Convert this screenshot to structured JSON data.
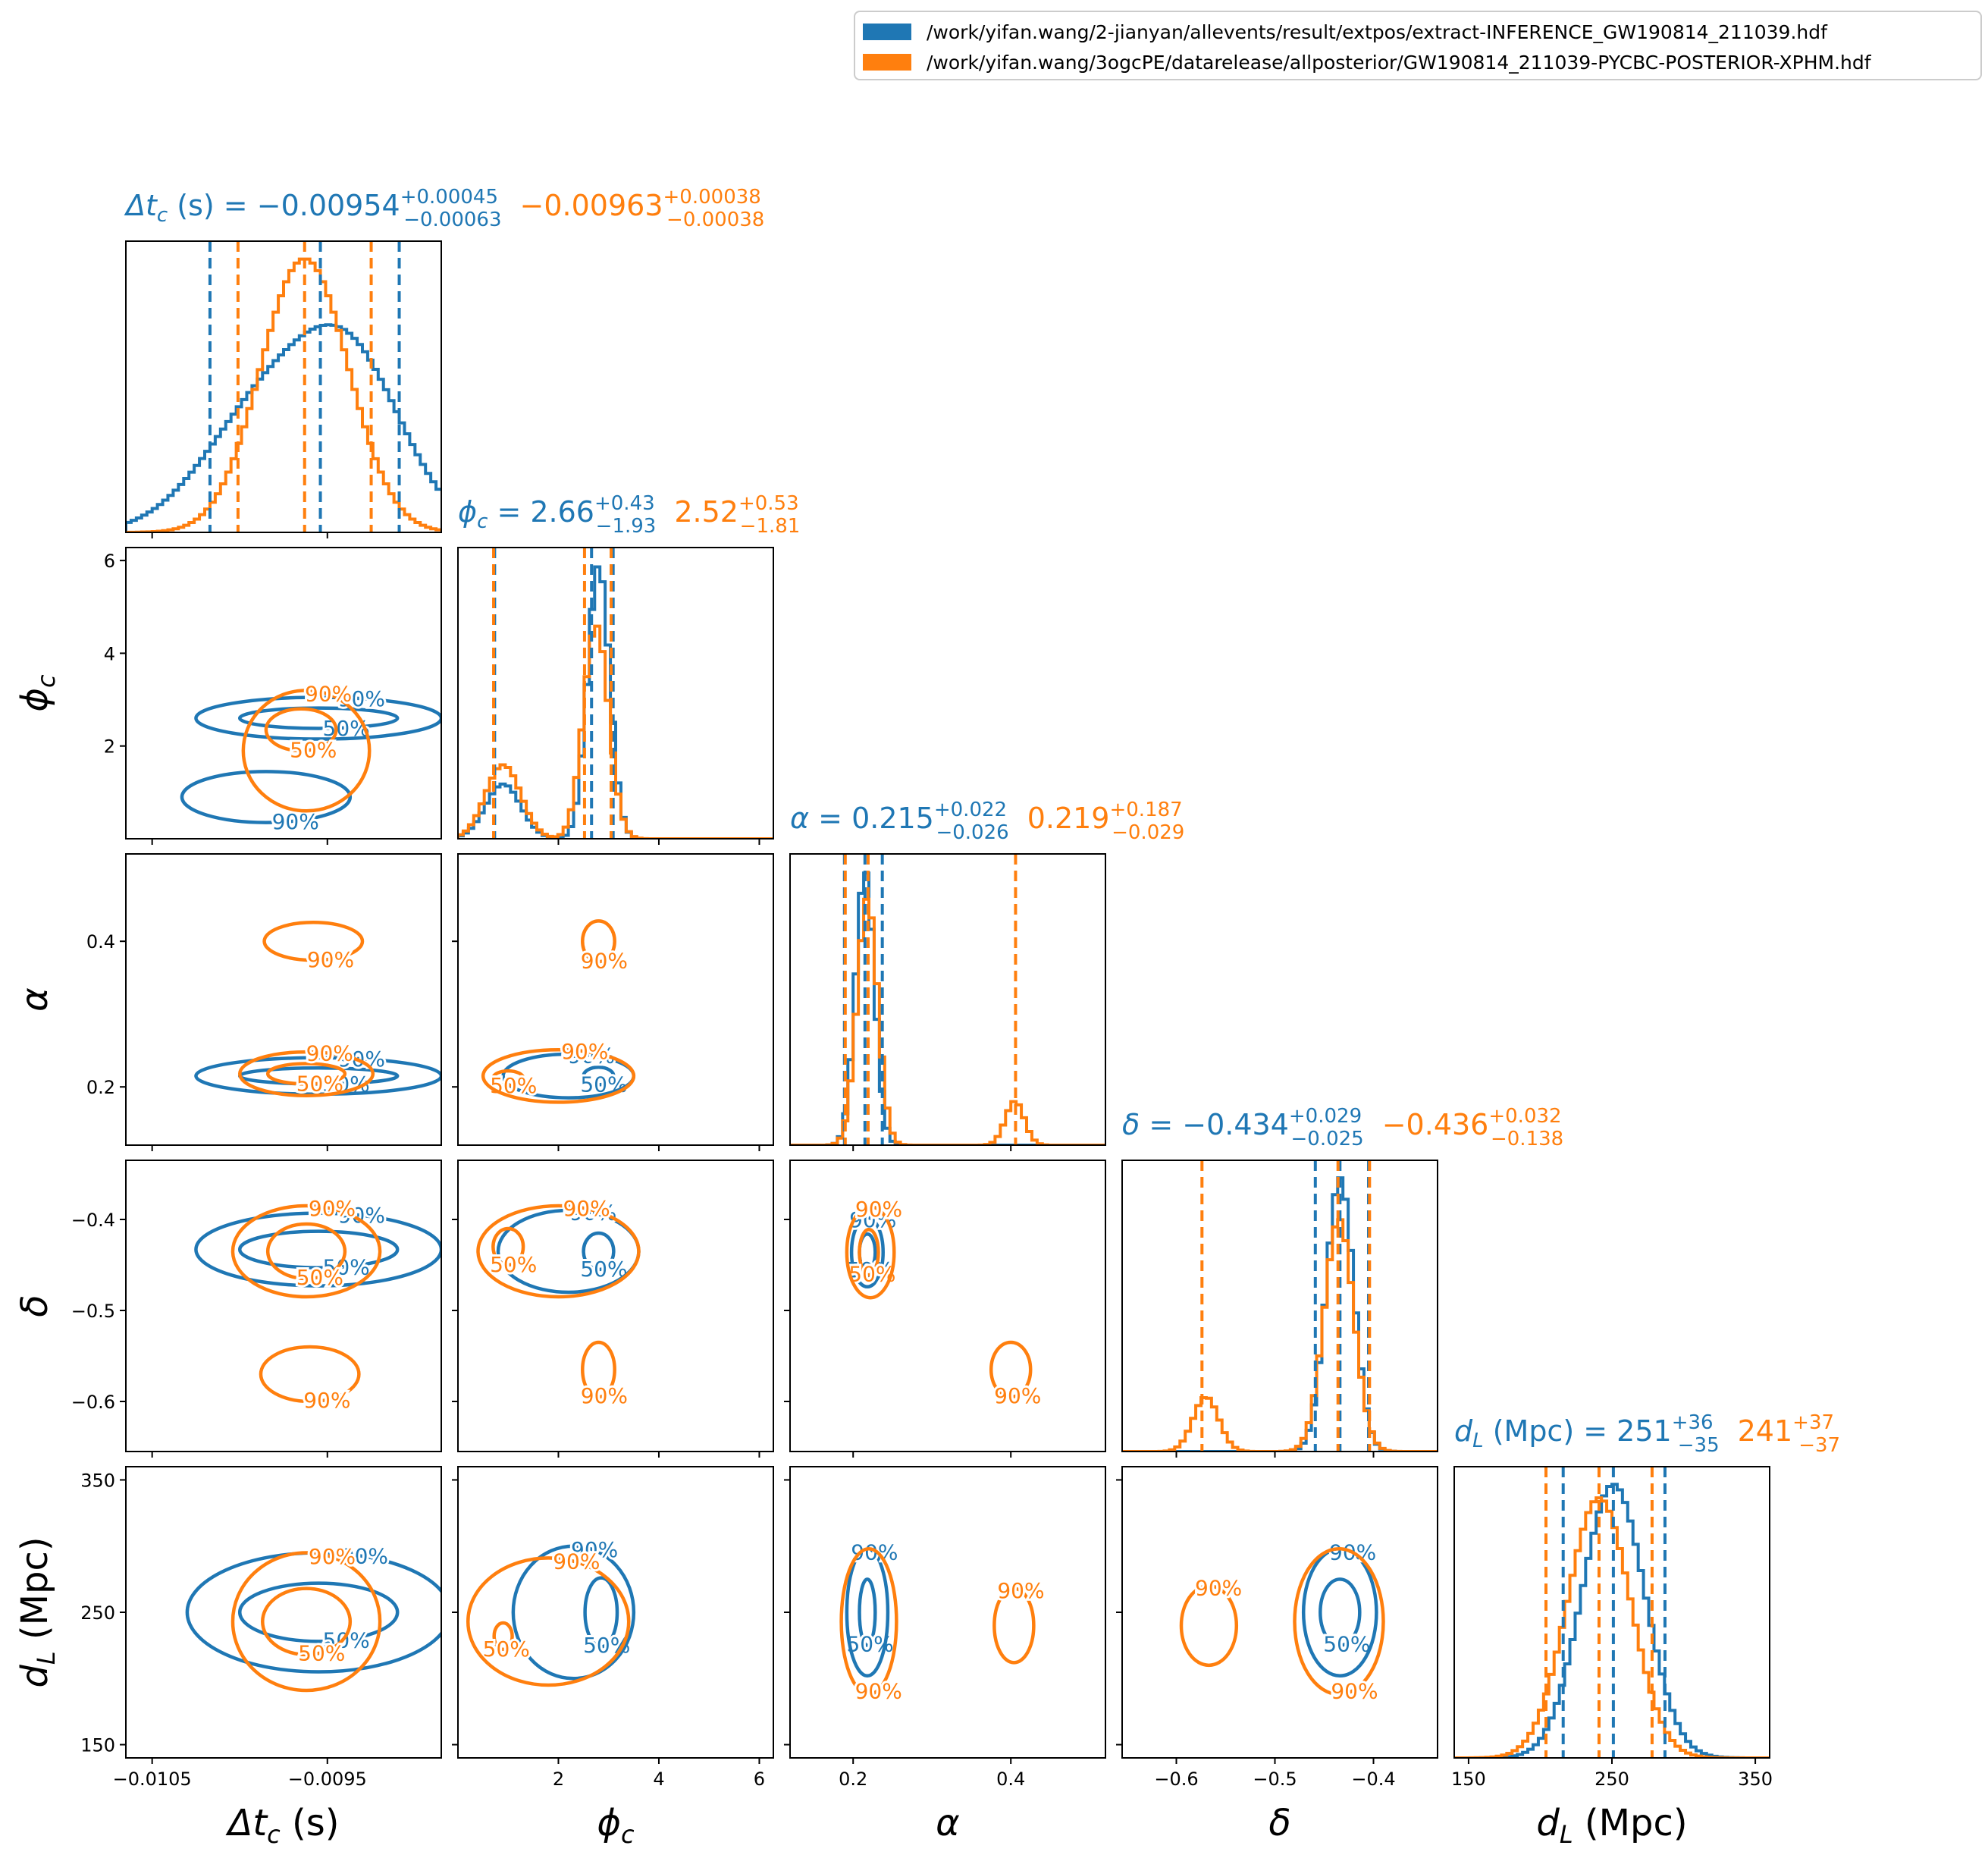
{
  "legend": {
    "blue_label": "/work/yifan.wang/2-jianyan/allevents/result/extpos/extract-INFERENCE_GW190814_211039.hdf",
    "orange_label": "/work/yifan.wang/3ogcPE/datarelease/allposterior/GW190814_211039-PYCBC-POSTERIOR-XPHM.hdf"
  },
  "chart_data": {
    "type": "corner",
    "colors": {
      "blue": "#1f77b4",
      "orange": "#ff7f0e"
    },
    "series": [
      {
        "name": "/work/yifan.wang/2-jianyan/allevents/result/extpos/extract-INFERENCE_GW190814_211039.hdf",
        "color": "#1f77b4"
      },
      {
        "name": "/work/yifan.wang/3ogcPE/datarelease/allposterior/GW190814_211039-PYCBC-POSTERIOR-XPHM.hdf",
        "color": "#ff7f0e"
      }
    ],
    "contour_levels": [
      "50%",
      "90%"
    ],
    "parameters": [
      {
        "key": "dtc",
        "label": "Δt_c (s)",
        "range": [
          -0.01065,
          -0.00885
        ],
        "ticks": [
          -0.0105,
          -0.0095
        ],
        "tick_labels": [
          "−0.0105",
          "−0.0095"
        ],
        "title_blue": {
          "name": "Δt_c (s) = ",
          "median": "−0.00954",
          "plus": "+0.00045",
          "minus": "−0.00063"
        },
        "title_orange": {
          "median": "−0.00963",
          "plus": "+0.00038",
          "minus": "−0.00038"
        },
        "quantiles_blue": [
          -0.01017,
          -0.00954,
          -0.00909
        ],
        "quantiles_orange": [
          -0.01001,
          -0.00963,
          -0.00925
        ],
        "hist_blue": {
          "components": [
            [
              -0.00985,
              0.00035,
              0.45
            ],
            [
              -0.00935,
              0.0003,
              0.55
            ]
          ]
        },
        "hist_orange": {
          "components": [
            [
              -0.00963,
              0.00025,
              1.0
            ]
          ]
        }
      },
      {
        "key": "phic",
        "label": "ϕ_c",
        "range": [
          0.0,
          6.28
        ],
        "ticks": [
          2,
          4,
          6
        ],
        "tick_labels": [
          "2",
          "4",
          "6"
        ],
        "title_blue": {
          "name": "ϕ_c = ",
          "median": "2.66",
          "plus": "+0.43",
          "minus": "−1.93"
        },
        "title_orange": {
          "median": "2.52",
          "plus": "+0.53",
          "minus": "−1.81"
        },
        "quantiles_blue": [
          0.73,
          2.66,
          3.09
        ],
        "quantiles_orange": [
          0.71,
          2.52,
          3.05
        ],
        "hist_blue": {
          "components": [
            [
              0.9,
              0.35,
              0.2
            ],
            [
              2.8,
              0.22,
              1.0
            ]
          ]
        },
        "hist_orange": {
          "components": [
            [
              0.9,
              0.35,
              0.27
            ],
            [
              2.75,
              0.25,
              0.78
            ]
          ]
        }
      },
      {
        "key": "alpha",
        "label": "α",
        "range": [
          0.12,
          0.52
        ],
        "ticks": [
          0.2,
          0.4
        ],
        "tick_labels": [
          "0.2",
          "0.4"
        ],
        "title_blue": {
          "name": "α = ",
          "median": "0.215",
          "plus": "+0.022",
          "minus": "−0.026"
        },
        "title_orange": {
          "median": "0.219",
          "plus": "+0.187",
          "minus": "−0.029"
        },
        "quantiles_blue": [
          0.189,
          0.215,
          0.237
        ],
        "quantiles_orange": [
          0.19,
          0.219,
          0.406
        ],
        "hist_blue": {
          "components": [
            [
              0.215,
              0.012,
              1.0
            ]
          ]
        },
        "hist_orange": {
          "components": [
            [
              0.218,
              0.013,
              0.9
            ],
            [
              0.405,
              0.012,
              0.16
            ]
          ]
        }
      },
      {
        "key": "delta",
        "label": "δ",
        "range": [
          -0.655,
          -0.335
        ],
        "ticks": [
          -0.6,
          -0.5,
          -0.4
        ],
        "tick_labels": [
          "−0.6",
          "−0.5",
          "−0.4"
        ],
        "title_blue": {
          "name": "δ = ",
          "median": "−0.434",
          "plus": "+0.029",
          "minus": "−0.025"
        },
        "title_orange": {
          "median": "−0.436",
          "plus": "+0.032",
          "minus": "−0.138"
        },
        "quantiles_blue": [
          -0.459,
          -0.434,
          -0.405
        ],
        "quantiles_orange": [
          -0.574,
          -0.436,
          -0.404
        ],
        "hist_blue": {
          "components": [
            [
              -0.434,
              0.014,
              1.0
            ]
          ]
        },
        "hist_orange": {
          "components": [
            [
              -0.435,
              0.015,
              0.85
            ],
            [
              -0.57,
              0.013,
              0.2
            ]
          ]
        }
      },
      {
        "key": "dl",
        "label": "d_L (Mpc)",
        "range": [
          140,
          360
        ],
        "ticks": [
          150,
          250,
          350
        ],
        "tick_labels": [
          "150",
          "250",
          "350"
        ],
        "title_blue": {
          "name": "d_L (Mpc) = ",
          "median": "251",
          "plus": "+36",
          "minus": "−35"
        },
        "title_orange": {
          "median": "241",
          "plus": "+37",
          "minus": "−37"
        },
        "quantiles_blue": [
          216,
          251,
          287
        ],
        "quantiles_orange": [
          204,
          241,
          278
        ],
        "hist_blue": {
          "components": [
            [
              251,
              22,
              1.0
            ]
          ]
        },
        "hist_orange": {
          "components": [
            [
              241,
              22,
              0.95
            ]
          ]
        }
      }
    ],
    "y_axis_ticks": {
      "phic": {
        "ticks": [
          2,
          4,
          6
        ],
        "tick_labels": [
          "2",
          "4",
          "6"
        ]
      },
      "alpha": {
        "ticks": [
          0.2,
          0.4
        ],
        "tick_labels": [
          "0.2",
          "0.4"
        ]
      },
      "delta": {
        "ticks": [
          -0.6,
          -0.5,
          -0.4
        ],
        "tick_labels": [
          "−0.6",
          "−0.5",
          "−0.4"
        ]
      },
      "dl": {
        "ticks": [
          150,
          250,
          350
        ],
        "tick_labels": [
          "150",
          "250",
          "350"
        ]
      }
    },
    "contours_2d": {
      "1-0": {
        "blue": [
          {
            "level": "50%",
            "center": [
              -0.00955,
              2.6
            ],
            "radius": [
              0.00045,
              0.22
            ]
          },
          {
            "level": "90%",
            "center": [
              -0.00955,
              2.6
            ],
            "radius": [
              0.0007,
              0.45
            ]
          },
          {
            "level": "90%",
            "center": [
              -0.00985,
              0.9
            ],
            "radius": [
              0.00048,
              0.55
            ]
          }
        ],
        "orange": [
          {
            "level": "50%",
            "center": [
              -0.00965,
              2.35
            ],
            "radius": [
              0.0002,
              0.45
            ]
          },
          {
            "level": "90%",
            "center": [
              -0.00962,
              1.9
            ],
            "radius": [
              0.00036,
              1.3
            ]
          }
        ]
      },
      "2-0": {
        "blue": [
          {
            "level": "50%",
            "center": [
              -0.00955,
              0.215
            ],
            "radius": [
              0.00045,
              0.011
            ]
          },
          {
            "level": "90%",
            "center": [
              -0.00955,
              0.215
            ],
            "radius": [
              0.0007,
              0.025
            ]
          }
        ],
        "orange": [
          {
            "level": "50%",
            "center": [
              -0.00962,
              0.218
            ],
            "radius": [
              0.00022,
              0.014
            ]
          },
          {
            "level": "90%",
            "center": [
              -0.00962,
              0.218
            ],
            "radius": [
              0.00038,
              0.03
            ]
          },
          {
            "level": "90%",
            "center": [
              -0.00958,
              0.4
            ],
            "radius": [
              0.00028,
              0.026
            ]
          }
        ]
      },
      "2-1": {
        "blue": [
          {
            "level": "50%",
            "center": [
              2.8,
              0.215
            ],
            "radius": [
              0.3,
              0.012
            ]
          },
          {
            "level": "90%",
            "center": [
              2.2,
              0.215
            ],
            "radius": [
              1.3,
              0.03
            ]
          }
        ],
        "orange": [
          {
            "level": "50%",
            "center": [
              1.0,
              0.212
            ],
            "radius": [
              0.3,
              0.01
            ]
          },
          {
            "level": "90%",
            "center": [
              2.0,
              0.215
            ],
            "radius": [
              1.5,
              0.036
            ]
          },
          {
            "level": "90%",
            "center": [
              2.8,
              0.4
            ],
            "radius": [
              0.32,
              0.028
            ]
          }
        ]
      },
      "2-2": {},
      "3-0": {
        "blue": [
          {
            "level": "50%",
            "center": [
              -0.00955,
              -0.433
            ],
            "radius": [
              0.00045,
              0.02
            ]
          },
          {
            "level": "90%",
            "center": [
              -0.00955,
              -0.433
            ],
            "radius": [
              0.0007,
              0.04
            ]
          }
        ],
        "orange": [
          {
            "level": "50%",
            "center": [
              -0.00962,
              -0.435
            ],
            "radius": [
              0.00022,
              0.03
            ]
          },
          {
            "level": "90%",
            "center": [
              -0.00962,
              -0.435
            ],
            "radius": [
              0.00042,
              0.05
            ]
          },
          {
            "level": "90%",
            "center": [
              -0.0096,
              -0.57
            ],
            "radius": [
              0.00028,
              0.03
            ]
          }
        ]
      },
      "3-1": {
        "blue": [
          {
            "level": "50%",
            "center": [
              2.8,
              -0.435
            ],
            "radius": [
              0.3,
              0.02
            ]
          },
          {
            "level": "90%",
            "center": [
              2.2,
              -0.435
            ],
            "radius": [
              1.4,
              0.045
            ]
          }
        ],
        "orange": [
          {
            "level": "50%",
            "center": [
              1.0,
              -0.43
            ],
            "radius": [
              0.3,
              0.02
            ]
          },
          {
            "level": "90%",
            "center": [
              2.0,
              -0.435
            ],
            "radius": [
              1.6,
              0.05
            ]
          },
          {
            "level": "90%",
            "center": [
              2.8,
              -0.565
            ],
            "radius": [
              0.32,
              0.03
            ]
          }
        ]
      },
      "3-2": {
        "blue": [
          {
            "level": "50%",
            "center": [
              0.218,
              -0.436
            ],
            "radius": [
              0.01,
              0.02
            ]
          },
          {
            "level": "90%",
            "center": [
              0.218,
              -0.436
            ],
            "radius": [
              0.02,
              0.038
            ]
          }
        ],
        "orange": [
          {
            "level": "50%",
            "center": [
              0.22,
              -0.436
            ],
            "radius": [
              0.012,
              0.025
            ]
          },
          {
            "level": "90%",
            "center": [
              0.222,
              -0.436
            ],
            "radius": [
              0.03,
              0.05
            ]
          },
          {
            "level": "90%",
            "center": [
              0.4,
              -0.565
            ],
            "radius": [
              0.025,
              0.03
            ]
          }
        ]
      },
      "4-0": {
        "blue": [
          {
            "level": "50%",
            "center": [
              -0.00955,
              250
            ],
            "radius": [
              0.00045,
              22
            ]
          },
          {
            "level": "90%",
            "center": [
              -0.00955,
              250
            ],
            "radius": [
              0.00075,
              45
            ]
          }
        ],
        "orange": [
          {
            "level": "50%",
            "center": [
              -0.00962,
              243
            ],
            "radius": [
              0.00025,
              25
            ]
          },
          {
            "level": "90%",
            "center": [
              -0.00962,
              243
            ],
            "radius": [
              0.00042,
              52
            ]
          }
        ]
      },
      "4-1": {
        "blue": [
          {
            "level": "50%",
            "center": [
              2.85,
              250
            ],
            "radius": [
              0.32,
              26
            ]
          },
          {
            "level": "90%",
            "center": [
              2.3,
              250
            ],
            "radius": [
              1.2,
              50
            ]
          }
        ],
        "orange": [
          {
            "level": "50%",
            "center": [
              0.9,
              232
            ],
            "radius": [
              0.18,
              10
            ]
          },
          {
            "level": "90%",
            "center": [
              1.8,
              243
            ],
            "radius": [
              1.6,
              48
            ]
          }
        ]
      },
      "4-2": {
        "blue": [
          {
            "level": "50%",
            "center": [
              0.218,
              250
            ],
            "radius": [
              0.01,
              25
            ]
          },
          {
            "level": "90%",
            "center": [
              0.218,
              250
            ],
            "radius": [
              0.026,
              48
            ]
          }
        ],
        "orange": [
          {
            "level": "90%",
            "center": [
              0.22,
              243
            ],
            "radius": [
              0.035,
              55
            ]
          },
          {
            "level": "90%",
            "center": [
              0.404,
              240
            ],
            "radius": [
              0.025,
              28
            ]
          }
        ]
      },
      "4-3": {
        "blue": [
          {
            "level": "50%",
            "center": [
              -0.434,
              250
            ],
            "radius": [
              0.02,
              25
            ]
          },
          {
            "level": "90%",
            "center": [
              -0.434,
              250
            ],
            "radius": [
              0.037,
              48
            ]
          }
        ],
        "orange": [
          {
            "level": "90%",
            "center": [
              -0.435,
              243
            ],
            "radius": [
              0.045,
              55
            ]
          },
          {
            "level": "90%",
            "center": [
              -0.567,
              240
            ],
            "radius": [
              0.028,
              30
            ]
          }
        ]
      }
    }
  }
}
